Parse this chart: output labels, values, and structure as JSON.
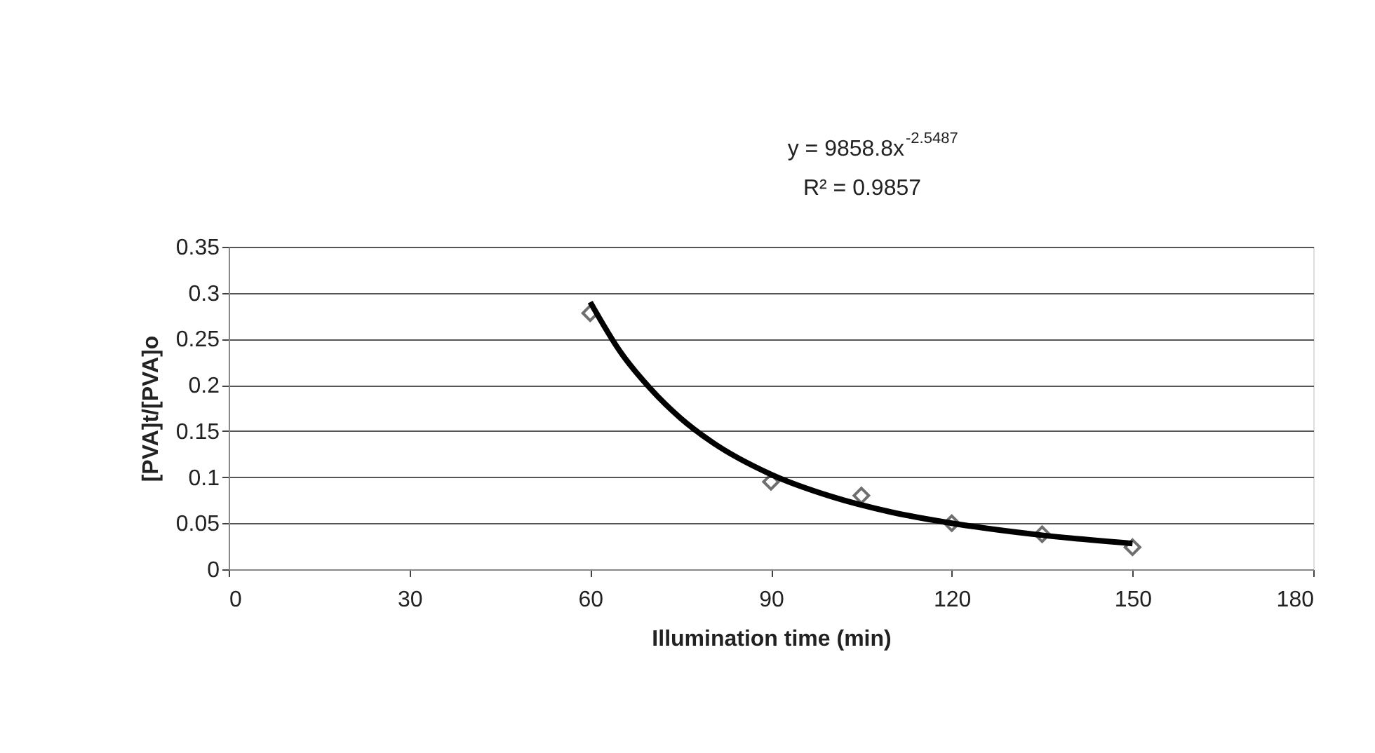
{
  "chart_data": {
    "type": "scatter",
    "xlabel": "Illumination time (min)",
    "ylabel": "[PVA]t/[PVA]o",
    "annotations": [
      "y = 9858.8x$^{-2.5487}$",
      "R² = 0.9857"
    ],
    "xlim": [
      0,
      180
    ],
    "xticks": [
      0,
      30,
      60,
      90,
      120,
      150,
      180
    ],
    "ylim": [
      0,
      0.35
    ],
    "yticks": [
      0,
      0.05,
      0.1,
      0.15,
      0.2,
      0.25,
      0.3,
      0.35
    ],
    "grid": "y",
    "marker": "diamond",
    "series": [
      {
        "color": "#333333",
        "x": [
          60,
          90,
          105,
          120,
          135,
          150
        ],
        "values": [
          0.278,
          0.095,
          0.08,
          0.05,
          0.038,
          0.024
        ]
      },
      {
        "type": "line",
        "color": "#000000",
        "line_style": "solid",
        "marker": "none",
        "x": [
          60,
          65,
          70,
          75,
          80,
          90,
          100,
          110,
          120,
          135,
          150
        ],
        "values": [
          0.29,
          0.236,
          0.196,
          0.164,
          0.139,
          0.103,
          0.079,
          0.062,
          0.05,
          0.037,
          0.028
        ]
      }
    ]
  }
}
